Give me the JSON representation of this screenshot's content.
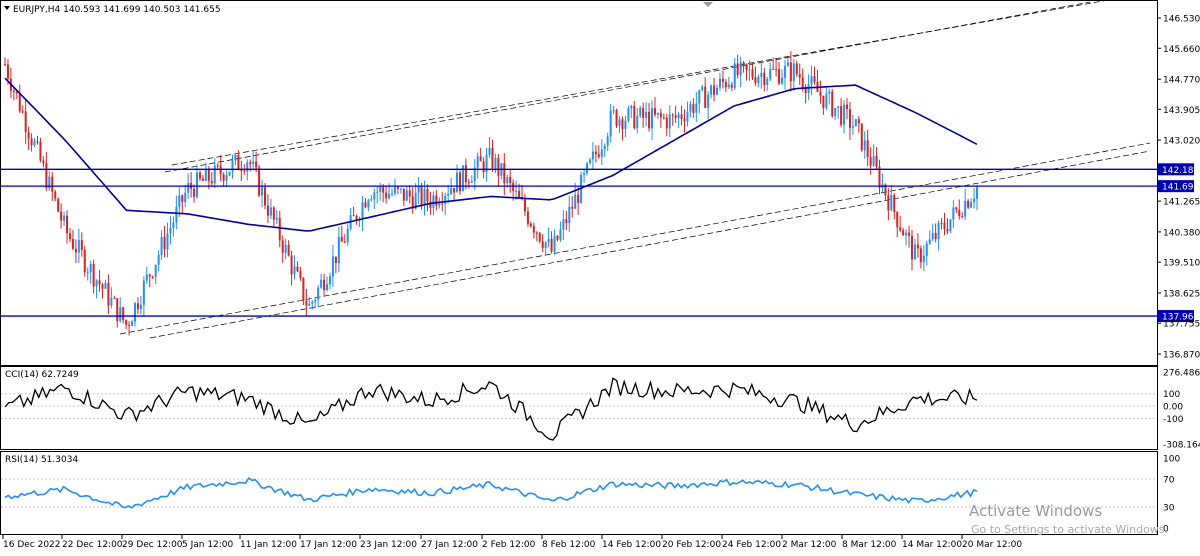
{
  "symbol_header": {
    "text": "EURJPY,H4  140.593 141.699 140.503 141.655"
  },
  "colors": {
    "bull_candle": "#1e90ff",
    "bear_candle": "#e01e1e",
    "moving_average": "#0000aa",
    "horizontal_levels": "#0000bb",
    "level_tag_bg": "#0000bb",
    "channel_lines": "#000000",
    "cci_line": "#000000",
    "rsi_line": "#1e90ff",
    "grid": "#c8c8c8"
  },
  "price_axis": {
    "labels": [
      "146.530",
      "145.660",
      "144.770",
      "143.905",
      "143.020",
      "142.180",
      "141.696",
      "141.265",
      "140.380",
      "139.510",
      "138.625",
      "137.961",
      "137.755",
      "136.870"
    ],
    "highlighted": [
      "142.180",
      "141.696",
      "137.961"
    ]
  },
  "horizontal_levels": [
    142.18,
    141.696,
    137.961
  ],
  "cci_panel": {
    "title": "CCI(14) 62.7249",
    "labels": [
      "276.4866",
      "100",
      "0.00",
      "-100",
      "-308.1646"
    ],
    "current_value": 62.7249
  },
  "rsi_panel": {
    "title": "RSI(14) 51.3034",
    "labels": [
      "100",
      "70",
      "30",
      "0"
    ],
    "current_value": 51.3034
  },
  "time_axis": {
    "labels": [
      "16 Dec 2022",
      "22 Dec 12:00",
      "29 Dec 12:00",
      "5 Jan 12:00",
      "11 Jan 12:00",
      "17 Jan 12:00",
      "23 Jan 12:00",
      "27 Jan 12:00",
      "2 Feb 12:00",
      "8 Feb 12:00",
      "14 Feb 12:00",
      "20 Feb 12:00",
      "24 Feb 12:00",
      "2 Mar 12:00",
      "8 Mar 12:00",
      "14 Mar 12:00",
      "20 Mar 12:00"
    ]
  },
  "watermark": {
    "title": "Activate Windows",
    "subtitle": "Go to Settings to activate Windows."
  },
  "chart_data": {
    "type": "line",
    "title": "EURJPY,H4",
    "ohlc_last": {
      "open": 140.593,
      "high": 141.699,
      "low": 140.503,
      "close": 141.655
    },
    "x": [
      "16 Dec 2022",
      "22 Dec 12:00",
      "29 Dec 12:00",
      "5 Jan 12:00",
      "11 Jan 12:00",
      "17 Jan 12:00",
      "23 Jan 12:00",
      "27 Jan 12:00",
      "2 Feb 12:00",
      "8 Feb 12:00",
      "14 Feb 12:00",
      "20 Feb 12:00",
      "24 Feb 12:00",
      "2 Mar 12:00",
      "8 Mar 12:00",
      "14 Mar 12:00",
      "20 Mar 12:00"
    ],
    "price_series": [
      145.2,
      140.4,
      137.7,
      141.6,
      142.5,
      138.2,
      141.6,
      141.3,
      142.5,
      139.8,
      143.7,
      143.6,
      144.9,
      145.0,
      143.4,
      139.6,
      141.655
    ],
    "moving_average_series": [
      144.8,
      143.0,
      141.0,
      140.9,
      140.6,
      140.4,
      140.8,
      141.2,
      141.4,
      141.3,
      142.0,
      143.0,
      144.0,
      144.5,
      144.6,
      143.8,
      142.9
    ],
    "cci_series": [
      -20,
      150,
      -80,
      120,
      60,
      -160,
      140,
      40,
      180,
      -240,
      160,
      120,
      140,
      40,
      -150,
      60,
      62.7249
    ],
    "rsi_series": [
      45,
      55,
      28,
      58,
      68,
      40,
      56,
      50,
      62,
      38,
      63,
      60,
      66,
      62,
      48,
      38,
      51.3034
    ],
    "levels": [
      142.18,
      141.696,
      137.961
    ],
    "ylim": [
      136.87,
      146.53
    ],
    "cci_ylim": [
      -308.1646,
      276.4866
    ],
    "rsi_ylim": [
      0,
      100
    ],
    "grid": true
  }
}
